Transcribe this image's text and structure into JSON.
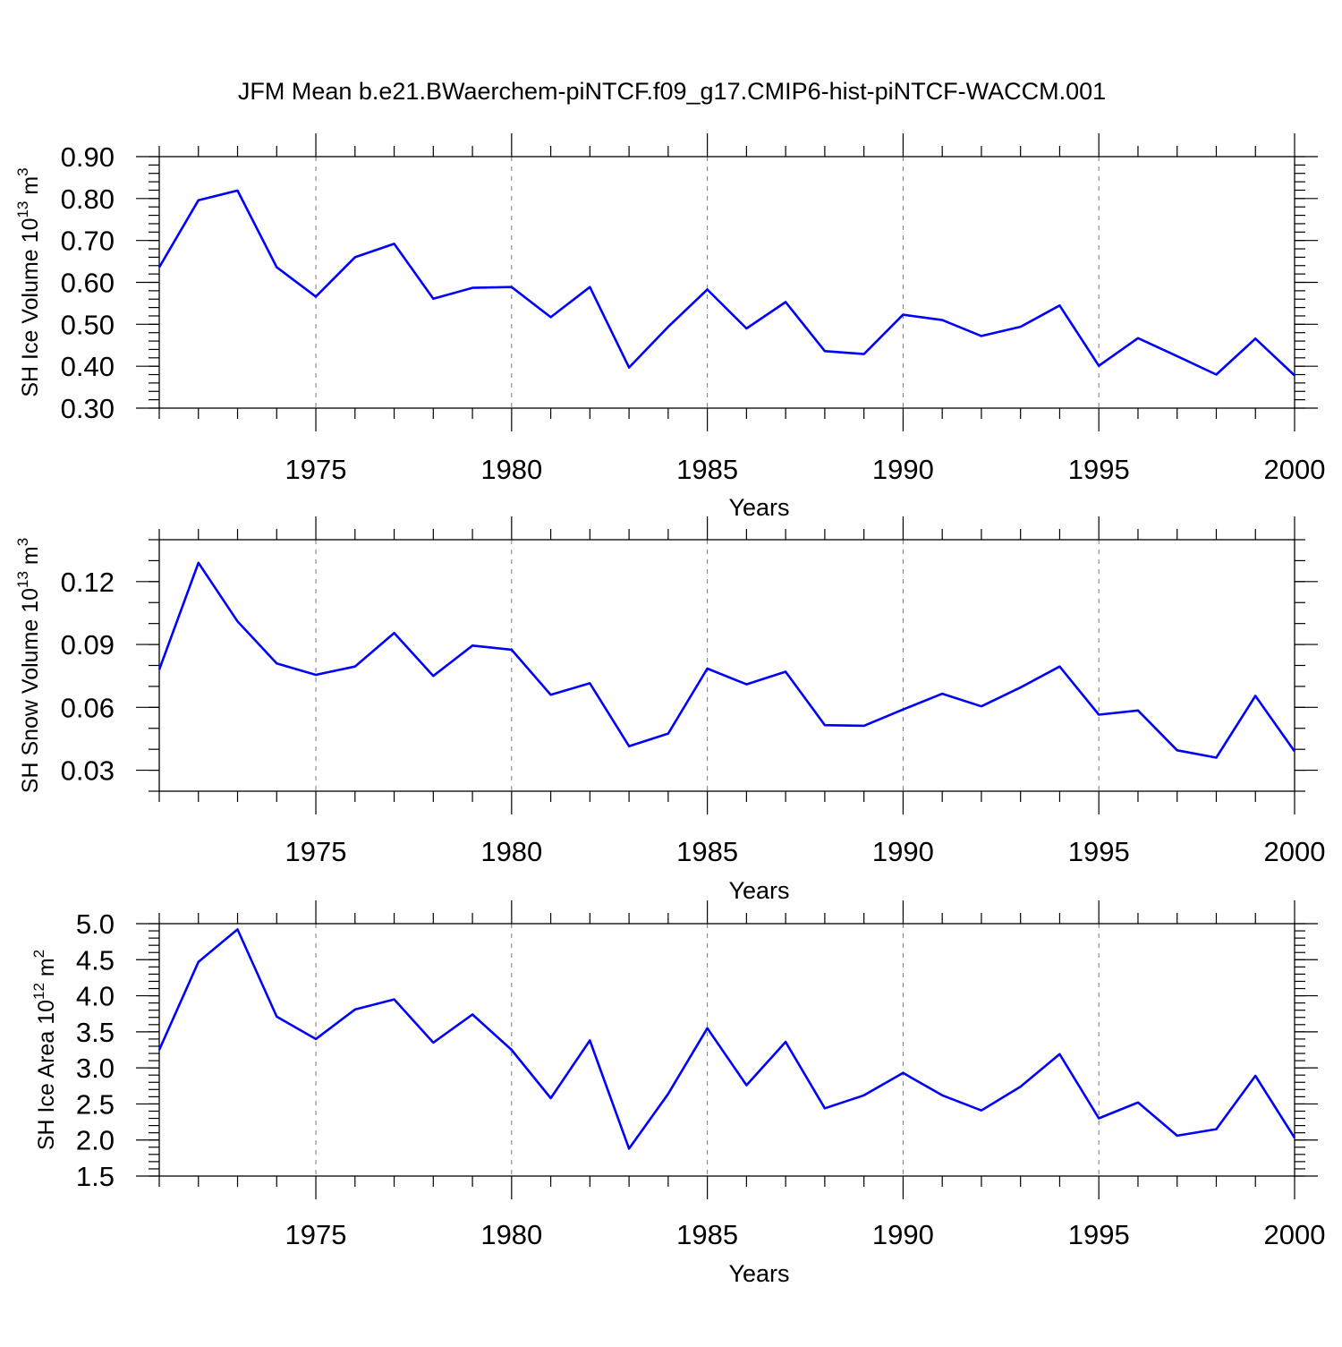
{
  "title": "JFM Mean b.e21.BWaerchem-piNTCF.f09_g17.CMIP6-hist-piNTCF-WACCM.001",
  "colors": {
    "series": "#0000ff",
    "grid": "#7a7a7a",
    "axis": "#000000"
  },
  "chart_data": [
    {
      "type": "line",
      "xlabel": "Years",
      "ylabel": "SH Ice Volume 10",
      "ylabel_exp": "13",
      "ylabel_unit": " m",
      "ylabel_unit_exp": "3",
      "xlim": [
        1971,
        2000
      ],
      "ylim": [
        0.3,
        0.9
      ],
      "xticks": [
        1975,
        1980,
        1985,
        1990,
        1995,
        2000
      ],
      "xtick_labels": [
        "1975",
        "1980",
        "1985",
        "1990",
        "1995",
        "2000"
      ],
      "yticks": [
        0.3,
        0.4,
        0.5,
        0.6,
        0.7,
        0.8,
        0.9
      ],
      "ytick_labels": [
        "0.30",
        "0.40",
        "0.50",
        "0.60",
        "0.70",
        "0.80",
        "0.90"
      ],
      "y_minor_step": 0.02,
      "grid": "vertical dashed at major x ticks",
      "x": [
        1971,
        1972,
        1973,
        1974,
        1975,
        1976,
        1977,
        1978,
        1979,
        1980,
        1981,
        1982,
        1983,
        1984,
        1985,
        1986,
        1987,
        1988,
        1989,
        1990,
        1991,
        1992,
        1993,
        1994,
        1995,
        1996,
        1997,
        1998,
        1999,
        2000
      ],
      "series": [
        {
          "values": [
            0.636,
            0.796,
            0.819,
            0.636,
            0.566,
            0.66,
            0.692,
            0.561,
            0.587,
            0.589,
            0.517,
            0.589,
            0.397,
            0.494,
            0.583,
            0.49,
            0.553,
            0.436,
            0.429,
            0.523,
            0.51,
            0.472,
            0.494,
            0.545,
            0.401,
            0.467,
            0.424,
            0.38,
            0.466,
            0.378
          ]
        }
      ]
    },
    {
      "type": "line",
      "xlabel": "Years",
      "ylabel": "SH Snow Volume 10",
      "ylabel_exp": "13",
      "ylabel_unit": " m",
      "ylabel_unit_exp": "3",
      "xlim": [
        1971,
        2000
      ],
      "ylim": [
        0.02,
        0.14
      ],
      "xticks": [
        1975,
        1980,
        1985,
        1990,
        1995,
        2000
      ],
      "xtick_labels": [
        "1975",
        "1980",
        "1985",
        "1990",
        "1995",
        "2000"
      ],
      "yticks": [
        0.03,
        0.06,
        0.09,
        0.12
      ],
      "ytick_labels": [
        "0.03",
        "0.06",
        "0.09",
        "0.12"
      ],
      "y_minor_step": 0.01,
      "grid": "vertical dashed at major x ticks",
      "x": [
        1971,
        1972,
        1973,
        1974,
        1975,
        1976,
        1977,
        1978,
        1979,
        1980,
        1981,
        1982,
        1983,
        1984,
        1985,
        1986,
        1987,
        1988,
        1989,
        1990,
        1991,
        1992,
        1993,
        1994,
        1995,
        1996,
        1997,
        1998,
        1999,
        2000
      ],
      "series": [
        {
          "values": [
            0.078,
            0.129,
            0.101,
            0.081,
            0.0755,
            0.0795,
            0.0955,
            0.075,
            0.0895,
            0.0875,
            0.066,
            0.0715,
            0.0415,
            0.0475,
            0.0785,
            0.071,
            0.077,
            0.0515,
            0.0512,
            0.059,
            0.0665,
            0.0605,
            0.0695,
            0.0795,
            0.0565,
            0.0585,
            0.0395,
            0.036,
            0.0655,
            0.039
          ]
        }
      ]
    },
    {
      "type": "line",
      "xlabel": "Years",
      "ylabel": "SH Ice Area 10",
      "ylabel_exp": "12",
      "ylabel_unit": " m",
      "ylabel_unit_exp": "2",
      "xlim": [
        1971,
        2000
      ],
      "ylim": [
        1.5,
        5.0
      ],
      "xticks": [
        1975,
        1980,
        1985,
        1990,
        1995,
        2000
      ],
      "xtick_labels": [
        "1975",
        "1980",
        "1985",
        "1990",
        "1995",
        "2000"
      ],
      "yticks": [
        1.5,
        2.0,
        2.5,
        3.0,
        3.5,
        4.0,
        4.5,
        5.0
      ],
      "ytick_labels": [
        "1.5",
        "2.0",
        "2.5",
        "3.0",
        "3.5",
        "4.0",
        "4.5",
        "5.0"
      ],
      "y_minor_step": 0.1,
      "grid": "vertical dashed at major x ticks",
      "x": [
        1971,
        1972,
        1973,
        1974,
        1975,
        1976,
        1977,
        1978,
        1979,
        1980,
        1981,
        1982,
        1983,
        1984,
        1985,
        1986,
        1987,
        1988,
        1989,
        1990,
        1991,
        1992,
        1993,
        1994,
        1995,
        1996,
        1997,
        1998,
        1999,
        2000
      ],
      "series": [
        {
          "values": [
            3.25,
            4.47,
            4.92,
            3.71,
            3.4,
            3.81,
            3.95,
            3.35,
            3.74,
            3.25,
            2.58,
            3.38,
            1.88,
            2.64,
            3.55,
            2.76,
            3.36,
            2.44,
            2.62,
            2.93,
            2.62,
            2.41,
            2.74,
            3.19,
            2.3,
            2.52,
            2.06,
            2.15,
            2.89,
            2.03
          ]
        }
      ]
    }
  ]
}
